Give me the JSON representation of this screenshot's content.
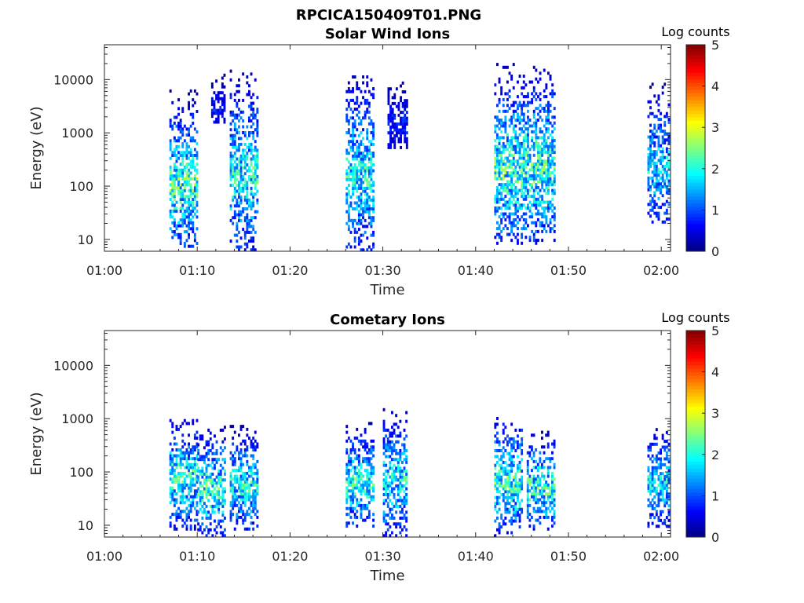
{
  "figure_title": "RPCICA150409T01.PNG",
  "chart_data": [
    {
      "type": "heatmap",
      "title": "Solar Wind Ions",
      "xlabel": "Time",
      "ylabel": "Energy (eV)",
      "x_ticks": [
        "01:00",
        "01:10",
        "01:20",
        "01:30",
        "01:40",
        "01:50",
        "02:00"
      ],
      "y_ticks": [
        "10",
        "100",
        "1000",
        "10000"
      ],
      "y_scale": "log",
      "ylim": [
        6,
        45000
      ],
      "xlim_minutes": [
        0,
        61
      ],
      "colorbar": {
        "label": "Log counts",
        "ticks": [
          "0",
          "1",
          "2",
          "3",
          "4",
          "5"
        ],
        "range": [
          0,
          5
        ],
        "colormap": "jet"
      },
      "bursts": [
        {
          "t_start": 7.0,
          "t_end": 10.0,
          "e_low": 7,
          "e_high": 6000,
          "peak_log_counts": 2.8
        },
        {
          "t_start": 11.5,
          "t_end": 13.0,
          "e_low": 1500,
          "e_high": 16000,
          "peak_log_counts": 1.0
        },
        {
          "t_start": 13.5,
          "t_end": 16.5,
          "e_low": 6,
          "e_high": 15000,
          "peak_log_counts": 2.5
        },
        {
          "t_start": 26.0,
          "t_end": 29.0,
          "e_low": 6,
          "e_high": 15000,
          "peak_log_counts": 2.5
        },
        {
          "t_start": 30.5,
          "t_end": 32.5,
          "e_low": 500,
          "e_high": 15000,
          "peak_log_counts": 1.0
        },
        {
          "t_start": 42.0,
          "t_end": 48.5,
          "e_low": 8,
          "e_high": 20000,
          "peak_log_counts": 2.8
        },
        {
          "t_start": 58.5,
          "t_end": 61.0,
          "e_low": 20,
          "e_high": 10000,
          "peak_log_counts": 2.2
        }
      ]
    },
    {
      "type": "heatmap",
      "title": "Cometary Ions",
      "xlabel": "Time",
      "ylabel": "Energy (eV)",
      "x_ticks": [
        "01:00",
        "01:10",
        "01:20",
        "01:30",
        "01:40",
        "01:50",
        "02:00"
      ],
      "y_ticks": [
        "10",
        "100",
        "1000",
        "10000"
      ],
      "y_scale": "log",
      "ylim": [
        6,
        45000
      ],
      "xlim_minutes": [
        0,
        61
      ],
      "colorbar": {
        "label": "Log counts",
        "ticks": [
          "0",
          "1",
          "2",
          "3",
          "4",
          "5"
        ],
        "range": [
          0,
          5
        ],
        "colormap": "jet"
      },
      "bursts": [
        {
          "t_start": 7.0,
          "t_end": 10.0,
          "e_low": 8,
          "e_high": 1200,
          "peak_log_counts": 2.6
        },
        {
          "t_start": 10.0,
          "t_end": 13.0,
          "e_low": 6,
          "e_high": 700,
          "peak_log_counts": 2.8
        },
        {
          "t_start": 13.5,
          "t_end": 16.5,
          "e_low": 8,
          "e_high": 700,
          "peak_log_counts": 2.5
        },
        {
          "t_start": 26.0,
          "t_end": 29.0,
          "e_low": 8,
          "e_high": 800,
          "peak_log_counts": 2.6
        },
        {
          "t_start": 30.0,
          "t_end": 32.5,
          "e_low": 6,
          "e_high": 1400,
          "peak_log_counts": 2.5
        },
        {
          "t_start": 42.0,
          "t_end": 45.0,
          "e_low": 6,
          "e_high": 1200,
          "peak_log_counts": 2.8
        },
        {
          "t_start": 45.5,
          "t_end": 48.5,
          "e_low": 8,
          "e_high": 600,
          "peak_log_counts": 2.7
        },
        {
          "t_start": 58.5,
          "t_end": 61.0,
          "e_low": 9,
          "e_high": 800,
          "peak_log_counts": 2.3
        }
      ]
    }
  ]
}
